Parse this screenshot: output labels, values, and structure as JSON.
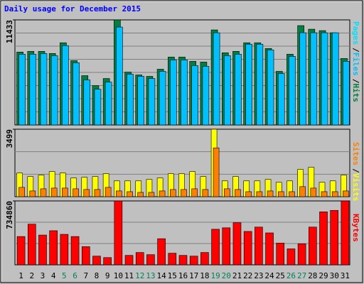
{
  "chart_data": [
    {
      "type": "bar",
      "title": "Daily usage for December 2015",
      "ylim": [
        0,
        11433
      ],
      "yticks": [
        11433
      ],
      "legend_separator": "/",
      "series": [
        {
          "name": "Hits",
          "color": "#008040",
          "values": [
            7933,
            8011,
            8011,
            7778,
            8944,
            7000,
            5367,
            4278,
            5055,
            11433,
            5755,
            5444,
            5289,
            6066,
            7389,
            7389,
            6922,
            6844,
            10344,
            7855,
            8011,
            8944,
            8944,
            8322,
            5833,
            7700,
            10811,
            10422,
            10266,
            10033,
            7233
          ]
        },
        {
          "name": "Files",
          "color": "#00c0ff",
          "values": [
            7700,
            7700,
            7778,
            7544,
            8633,
            6767,
            4900,
            3889,
            4667,
            10655,
            5522,
            5289,
            5055,
            5833,
            7078,
            7078,
            6455,
            6378,
            10033,
            7544,
            7700,
            8789,
            8789,
            8167,
            5600,
            7467,
            10033,
            10033,
            10033,
            10033,
            6922
          ]
        },
        {
          "name": "Pages",
          "color": "#00e0ff",
          "values": [
            null,
            null,
            null,
            null,
            null,
            null,
            null,
            null,
            null,
            null,
            null,
            null,
            null,
            null,
            null,
            null,
            null,
            null,
            null,
            null,
            null,
            null,
            null,
            null,
            null,
            null,
            null,
            null,
            null,
            null,
            null
          ]
        }
      ]
    },
    {
      "type": "bar",
      "ylim": [
        0,
        3499
      ],
      "yticks": [
        3499
      ],
      "legend_separator": "/",
      "series": [
        {
          "name": "Visits",
          "color": "#ffff00",
          "values": [
            1228,
            1042,
            1116,
            1302,
            1228,
            968,
            1005,
            1042,
            1191,
            819,
            819,
            819,
            893,
            968,
            1191,
            1191,
            1302,
            1042,
            3499,
            819,
            1042,
            819,
            819,
            893,
            744,
            819,
            1414,
            1526,
            744,
            819,
            1116
          ]
        },
        {
          "name": "Sites",
          "color": "#ff8000",
          "values": [
            484,
            298,
            409,
            446,
            446,
            409,
            372,
            372,
            484,
            298,
            260,
            223,
            223,
            298,
            372,
            372,
            409,
            372,
            2531,
            409,
            372,
            260,
            260,
            298,
            260,
            260,
            521,
            446,
            260,
            260,
            298
          ]
        }
      ]
    },
    {
      "type": "bar",
      "ylim": [
        0,
        734860
      ],
      "yticks": [
        734860
      ],
      "categories": [
        "1",
        "2",
        "3",
        "4",
        "5",
        "6",
        "7",
        "8",
        "9",
        "10",
        "11",
        "12",
        "13",
        "14",
        "15",
        "16",
        "17",
        "18",
        "19",
        "20",
        "21",
        "22",
        "23",
        "24",
        "25",
        "26",
        "27",
        "28",
        "29",
        "30",
        "31"
      ],
      "category_colors": [
        "#000000",
        "#000000",
        "#000000",
        "#000000",
        "#00805c",
        "#00805c",
        "#000000",
        "#000000",
        "#000000",
        "#000000",
        "#000000",
        "#00805c",
        "#00805c",
        "#000000",
        "#000000",
        "#000000",
        "#000000",
        "#000000",
        "#00805c",
        "#00805c",
        "#000000",
        "#000000",
        "#000000",
        "#000000",
        "#000000",
        "#00805c",
        "#00805c",
        "#000000",
        "#000000",
        "#000000",
        "#000000"
      ],
      "series": [
        {
          "name": "KBytes",
          "color": "#ff0000",
          "values": [
            325689,
            467656,
            342391,
            392497,
            350742,
            325689,
            208775,
            100212,
            83510,
            734860,
            108563,
            141967,
            116914,
            300636,
            133616,
            108563,
            100212,
            141967,
            409199,
            425901,
            484358,
            384146,
            434252,
            367444,
            250530,
            183722,
            242179,
            434252,
            609623,
            626325,
            734860
          ]
        }
      ]
    }
  ]
}
